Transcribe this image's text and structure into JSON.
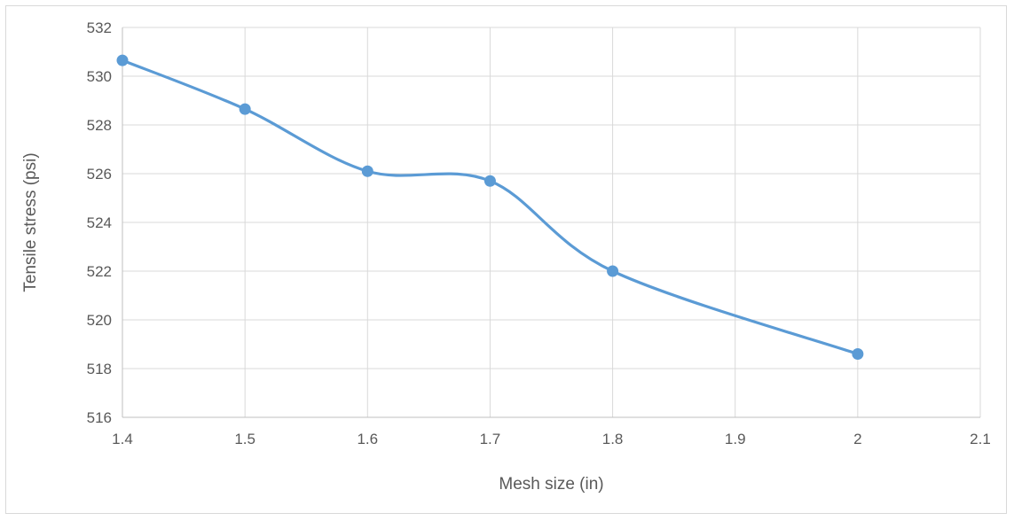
{
  "chart_data": {
    "type": "line",
    "title": "",
    "xlabel": "Mesh size (in)",
    "ylabel": "Tensile stress (psi)",
    "xlim": [
      1.4,
      2.1
    ],
    "ylim": [
      516,
      532
    ],
    "x_ticks": [
      "1.4",
      "1.5",
      "1.6",
      "1.7",
      "1.8",
      "1.9",
      "2",
      "2.1"
    ],
    "y_ticks": [
      "516",
      "518",
      "520",
      "522",
      "524",
      "526",
      "528",
      "530",
      "532"
    ],
    "grid": true,
    "smooth": true,
    "series": [
      {
        "x": [
          1.4,
          1.5,
          1.6,
          1.7,
          1.8,
          2.0
        ],
        "y": [
          530.65,
          528.65,
          526.1,
          525.7,
          522.0,
          518.6
        ],
        "color": "#5b9bd5"
      }
    ]
  }
}
